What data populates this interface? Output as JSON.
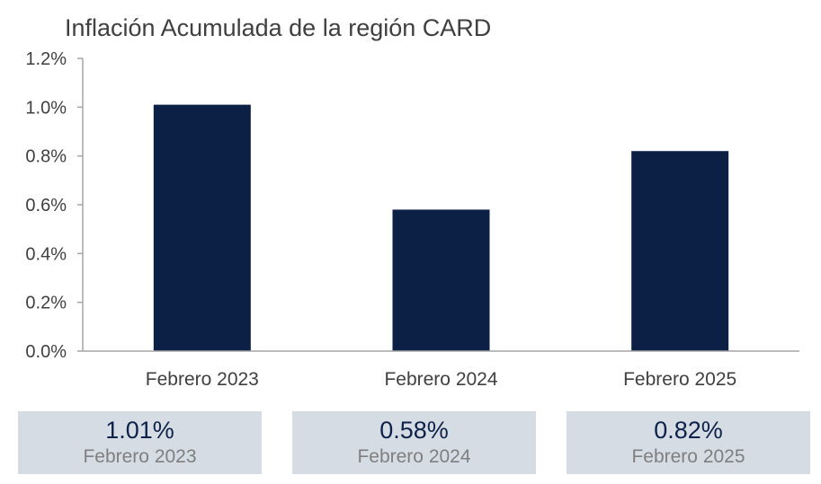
{
  "chart_data": {
    "type": "bar",
    "title": "Inflación Acumulada de la región CARD",
    "categories": [
      "Febrero 2023",
      "Febrero 2024",
      "Febrero 2025"
    ],
    "values": [
      1.01,
      0.58,
      0.82
    ],
    "ylim": [
      0,
      1.2
    ],
    "yticks": [
      0.0,
      0.2,
      0.4,
      0.6,
      0.8,
      1.0,
      1.2
    ],
    "ytick_labels": [
      "0.0%",
      "0.2%",
      "0.4%",
      "0.6%",
      "0.8%",
      "1.0%",
      "1.2%"
    ],
    "xlabel": "",
    "ylabel": "",
    "grid": false,
    "bar_color": "#0c1f44"
  },
  "summary": [
    {
      "value": "1.01%",
      "label": "Febrero 2023"
    },
    {
      "value": "0.58%",
      "label": "Febrero 2024"
    },
    {
      "value": "0.82%",
      "label": "Febrero 2025"
    }
  ],
  "colors": {
    "bar": "#0c1f44",
    "box_background": "#d6dce4",
    "value_text": "#0d2149",
    "label_text": "#7f7f7f",
    "axis": "#a6a6a6"
  }
}
